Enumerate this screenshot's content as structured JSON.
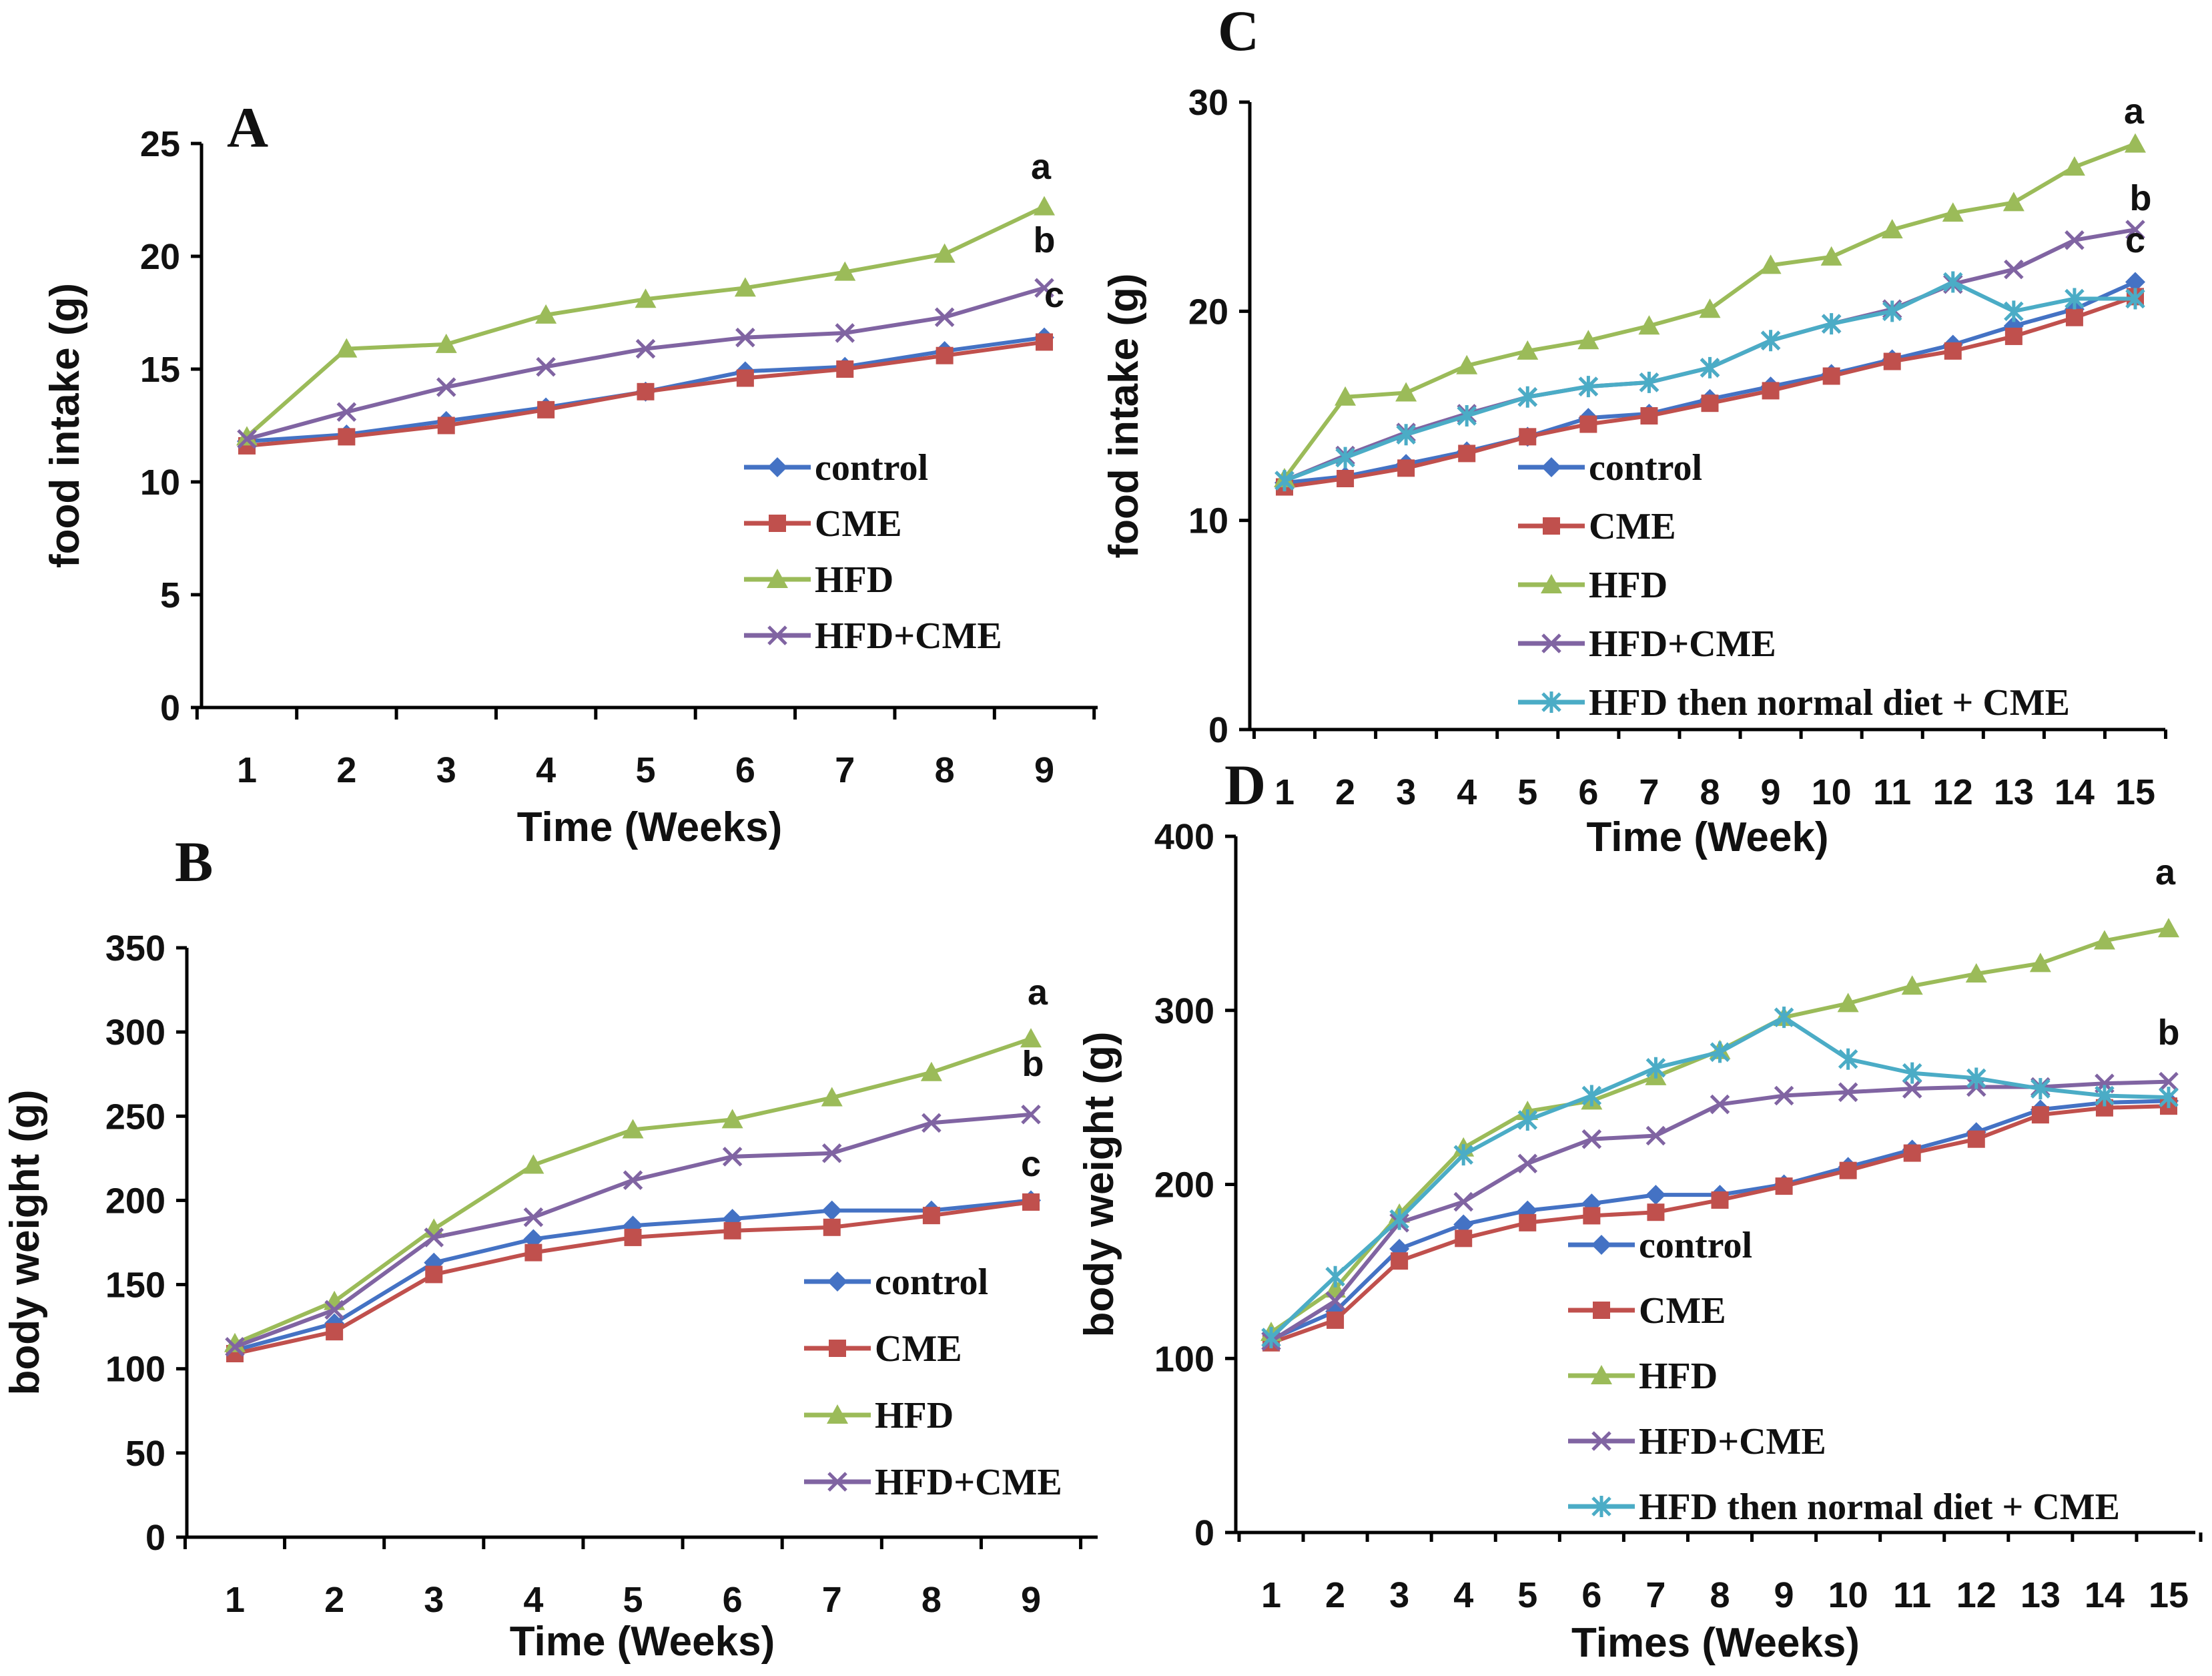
{
  "series_styles": [
    {
      "key": "control",
      "color": "#4472C4",
      "marker": "diamond"
    },
    {
      "key": "cme",
      "color": "#C0504D",
      "marker": "square"
    },
    {
      "key": "hfd",
      "color": "#9BBB59",
      "marker": "triangle"
    },
    {
      "key": "hfdcme",
      "color": "#8064A2",
      "marker": "x"
    },
    {
      "key": "hfdnd",
      "color": "#4BACC6",
      "marker": "star"
    }
  ],
  "chart_data": [
    {
      "id": "A",
      "type": "line",
      "panel_label": "A",
      "xlabel": "Time (Weeks)",
      "ylabel": "food intake (g)",
      "ylim": [
        0,
        25
      ],
      "yticks": [
        0,
        5,
        10,
        15,
        20,
        25
      ],
      "categories": [
        "1",
        "2",
        "3",
        "4",
        "5",
        "6",
        "7",
        "8",
        "9"
      ],
      "series": [
        {
          "name": "control",
          "style": "control",
          "values": [
            11.8,
            12.1,
            12.7,
            13.3,
            14.0,
            14.9,
            15.1,
            15.8,
            16.4
          ]
        },
        {
          "name": "CME",
          "style": "cme",
          "values": [
            11.6,
            12.0,
            12.5,
            13.2,
            14.0,
            14.6,
            15.0,
            15.6,
            16.2
          ]
        },
        {
          "name": "HFD",
          "style": "hfd",
          "values": [
            12.0,
            15.9,
            16.1,
            17.4,
            18.1,
            18.6,
            19.3,
            20.1,
            22.2
          ]
        },
        {
          "name": "HFD+CME",
          "style": "hfdcme",
          "values": [
            11.9,
            13.1,
            14.2,
            15.1,
            15.9,
            16.4,
            16.6,
            17.3,
            18.6
          ]
        }
      ],
      "annotations": [
        "a",
        "b",
        "c"
      ]
    },
    {
      "id": "B",
      "type": "line",
      "panel_label": "B",
      "xlabel": "Time (Weeks)",
      "ylabel": "body weight (g)",
      "ylim": [
        0,
        350
      ],
      "yticks": [
        0,
        50,
        100,
        150,
        200,
        250,
        300,
        350
      ],
      "categories": [
        "1",
        "2",
        "3",
        "4",
        "5",
        "6",
        "7",
        "8",
        "9"
      ],
      "series": [
        {
          "name": "control",
          "style": "control",
          "values": [
            111,
            127,
            163,
            177,
            185,
            189,
            194,
            194,
            200
          ]
        },
        {
          "name": "CME",
          "style": "cme",
          "values": [
            109,
            122,
            156,
            169,
            178,
            182,
            184,
            191,
            199
          ]
        },
        {
          "name": "HFD",
          "style": "hfd",
          "values": [
            115,
            140,
            183,
            221,
            242,
            248,
            261,
            276,
            296
          ]
        },
        {
          "name": "HFD+CME",
          "style": "hfdcme",
          "values": [
            113,
            135,
            178,
            190,
            212,
            226,
            228,
            246,
            251
          ]
        }
      ],
      "annotations": [
        "a",
        "b",
        "c"
      ]
    },
    {
      "id": "C",
      "type": "line",
      "panel_label": "C",
      "xlabel": "Time (Week)",
      "ylabel": "food intake (g)",
      "ylim": [
        0,
        30
      ],
      "yticks": [
        0,
        10,
        20,
        30
      ],
      "categories": [
        "1",
        "2",
        "3",
        "4",
        "5",
        "6",
        "7",
        "8",
        "9",
        "10",
        "11",
        "12",
        "13",
        "14",
        "15"
      ],
      "series": [
        {
          "name": "control",
          "style": "control",
          "values": [
            11.8,
            12.1,
            12.7,
            13.3,
            14.0,
            14.9,
            15.1,
            15.8,
            16.4,
            17.0,
            17.7,
            18.4,
            19.3,
            20.1,
            21.4
          ]
        },
        {
          "name": "CME",
          "style": "cme",
          "values": [
            11.6,
            12.0,
            12.5,
            13.2,
            14.0,
            14.6,
            15.0,
            15.6,
            16.2,
            16.9,
            17.6,
            18.1,
            18.8,
            19.7,
            20.7
          ]
        },
        {
          "name": "HFD",
          "style": "hfd",
          "values": [
            12.0,
            15.9,
            16.1,
            17.4,
            18.1,
            18.6,
            19.3,
            20.1,
            22.2,
            22.6,
            23.9,
            24.7,
            25.2,
            26.9,
            28.0
          ]
        },
        {
          "name": "HFD+CME",
          "style": "hfdcme",
          "values": [
            11.9,
            13.1,
            14.2,
            15.1,
            15.9,
            16.4,
            16.6,
            17.3,
            18.6,
            19.4,
            20.1,
            21.3,
            22.0,
            23.4,
            23.9
          ]
        },
        {
          "name": "HFD then normal diet + CME",
          "style": "hfdnd",
          "values": [
            11.9,
            13.0,
            14.1,
            15.0,
            15.9,
            16.4,
            16.6,
            17.3,
            18.6,
            19.4,
            20.0,
            21.4,
            20.0,
            20.6,
            20.6
          ]
        }
      ],
      "annotations": [
        "a",
        "b",
        "c"
      ]
    },
    {
      "id": "D",
      "type": "line",
      "panel_label": "D",
      "xlabel": "Times (Weeks)",
      "ylabel": "body weight (g)",
      "ylim": [
        0,
        400
      ],
      "yticks": [
        0,
        100,
        200,
        300,
        400
      ],
      "categories": [
        "1",
        "2",
        "3",
        "4",
        "5",
        "6",
        "7",
        "8",
        "9",
        "10",
        "11",
        "12",
        "13",
        "14",
        "15"
      ],
      "series": [
        {
          "name": "control",
          "style": "control",
          "values": [
            111,
            127,
            163,
            177,
            185,
            189,
            194,
            194,
            200,
            210,
            220,
            230,
            243,
            247,
            248
          ]
        },
        {
          "name": "CME",
          "style": "cme",
          "values": [
            109,
            122,
            156,
            169,
            178,
            182,
            184,
            191,
            199,
            208,
            218,
            226,
            240,
            244,
            245
          ]
        },
        {
          "name": "HFD",
          "style": "hfd",
          "values": [
            115,
            140,
            183,
            221,
            242,
            248,
            262,
            277,
            296,
            304,
            314,
            321,
            327,
            340,
            347
          ]
        },
        {
          "name": "HFD+CME",
          "style": "hfdcme",
          "values": [
            110,
            133,
            178,
            190,
            212,
            226,
            228,
            246,
            251,
            253,
            255,
            256,
            256,
            258,
            259
          ]
        },
        {
          "name": "HFD then normal diet + CME",
          "style": "hfdnd",
          "values": [
            112,
            147,
            180,
            217,
            237,
            251,
            267,
            276,
            296,
            272,
            264,
            261,
            255,
            251,
            250
          ]
        }
      ],
      "annotations": [
        "a",
        "b"
      ]
    }
  ]
}
